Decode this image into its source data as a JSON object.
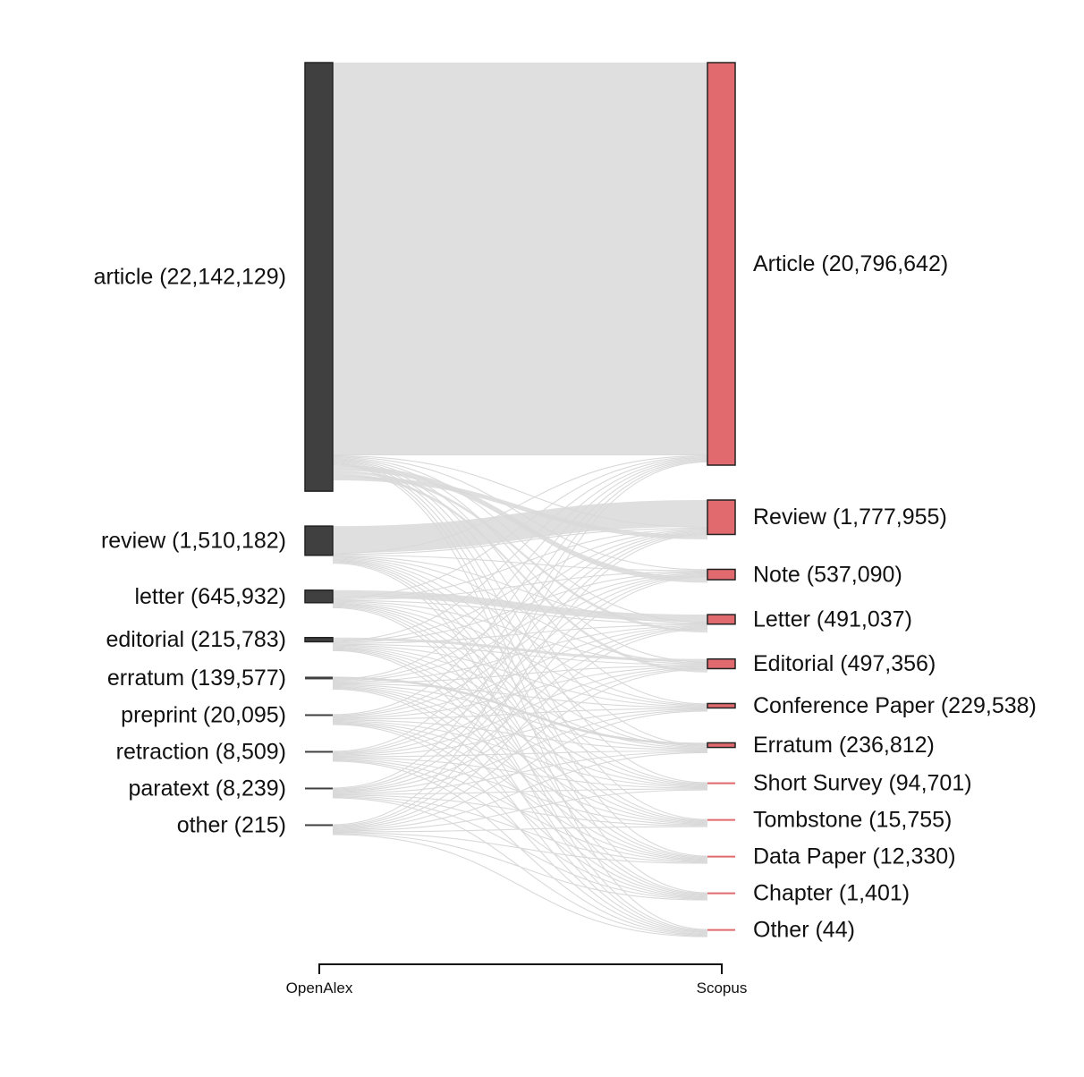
{
  "chart_data": {
    "type": "sankey",
    "axis": {
      "left_label": "OpenAlex",
      "right_label": "Scopus"
    },
    "colors": {
      "left_node": "#404040",
      "right_node": "#e06a6e",
      "link": "#d9d9d9",
      "node_stroke": "#222222"
    },
    "left_nodes": [
      {
        "name": "article",
        "value": 22142129,
        "label": "article (22,142,129)"
      },
      {
        "name": "review",
        "value": 1510182,
        "label": "review (1,510,182)"
      },
      {
        "name": "letter",
        "value": 645932,
        "label": "letter (645,932)"
      },
      {
        "name": "editorial",
        "value": 215783,
        "label": "editorial (215,783)"
      },
      {
        "name": "erratum",
        "value": 139577,
        "label": "erratum (139,577)"
      },
      {
        "name": "preprint",
        "value": 20095,
        "label": "preprint (20,095)"
      },
      {
        "name": "retraction",
        "value": 8509,
        "label": "retraction (8,509)"
      },
      {
        "name": "paratext",
        "value": 8239,
        "label": "paratext (8,239)"
      },
      {
        "name": "other",
        "value": 215,
        "label": "other (215)"
      }
    ],
    "right_nodes": [
      {
        "name": "Article",
        "value": 20796642,
        "label": "Article (20,796,642)"
      },
      {
        "name": "Review",
        "value": 1777955,
        "label": "Review (1,777,955)"
      },
      {
        "name": "Note",
        "value": 537090,
        "label": "Note (537,090)"
      },
      {
        "name": "Letter",
        "value": 491037,
        "label": "Letter (491,037)"
      },
      {
        "name": "Editorial",
        "value": 497356,
        "label": "Editorial (497,356)"
      },
      {
        "name": "Conference Paper",
        "value": 229538,
        "label": "Conference Paper (229,538)"
      },
      {
        "name": "Erratum",
        "value": 236812,
        "label": "Erratum (236,812)"
      },
      {
        "name": "Short Survey",
        "value": 94701,
        "label": "Short Survey (94,701)"
      },
      {
        "name": "Tombstone",
        "value": 15755,
        "label": "Tombstone (15,755)"
      },
      {
        "name": "Data Paper",
        "value": 12330,
        "label": "Data Paper (12,330)"
      },
      {
        "name": "Chapter",
        "value": 1401,
        "label": "Chapter (1,401)"
      },
      {
        "name": "Other",
        "value": 44,
        "label": "Other (44)"
      }
    ]
  }
}
